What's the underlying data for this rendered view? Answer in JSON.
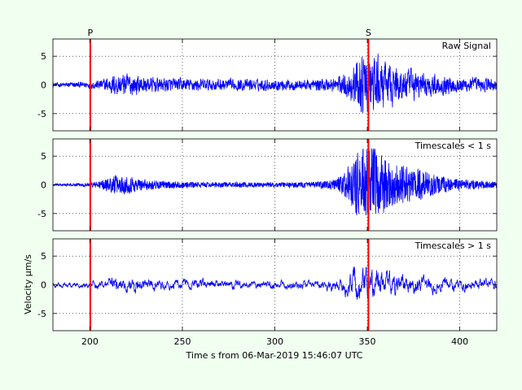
{
  "figure": {
    "background": "#f0fff0",
    "x_axis_label": "Time s from 06-Mar-2019 15:46:07 UTC",
    "y_axis_label": "Velocity μm/s",
    "trace_color": "#0000ff",
    "pick_color": "#ff0000"
  },
  "chart_data": {
    "type": "line",
    "shared_x": {
      "range": [
        180,
        420
      ],
      "ticks": [
        200,
        250,
        300,
        350,
        400
      ]
    },
    "picks": [
      {
        "label": "P",
        "x": 200.2
      },
      {
        "label": "S",
        "x": 350.6
      }
    ],
    "grid": true,
    "panels": [
      {
        "title": "Raw Signal",
        "ylim": [
          -8,
          8
        ],
        "yticks": [
          -5,
          0,
          5
        ],
        "envelope": [
          [
            180,
            0.5
          ],
          [
            188,
            0.6
          ],
          [
            196,
            0.7
          ],
          [
            200,
            0.8
          ],
          [
            206,
            1.2
          ],
          [
            214,
            2.5
          ],
          [
            222,
            2.6
          ],
          [
            230,
            1.8
          ],
          [
            240,
            1.6
          ],
          [
            260,
            1.4
          ],
          [
            280,
            1.3
          ],
          [
            300,
            1.3
          ],
          [
            320,
            1.2
          ],
          [
            333,
            1.8
          ],
          [
            338,
            2.6
          ],
          [
            342,
            4.0
          ],
          [
            346,
            6.5
          ],
          [
            350,
            7.2
          ],
          [
            354,
            6.5
          ],
          [
            360,
            5.0
          ],
          [
            368,
            4.0
          ],
          [
            378,
            3.0
          ],
          [
            390,
            2.2
          ],
          [
            400,
            1.8
          ],
          [
            412,
            1.6
          ],
          [
            420,
            1.5
          ]
        ]
      },
      {
        "title": "Timescales < 1 s",
        "ylim": [
          -8,
          8
        ],
        "yticks": [
          -5,
          0,
          5
        ],
        "envelope": [
          [
            180,
            0.2
          ],
          [
            188,
            0.25
          ],
          [
            196,
            0.3
          ],
          [
            200,
            0.4
          ],
          [
            206,
            0.8
          ],
          [
            214,
            1.8
          ],
          [
            222,
            1.6
          ],
          [
            230,
            1.0
          ],
          [
            240,
            0.7
          ],
          [
            260,
            0.5
          ],
          [
            280,
            0.5
          ],
          [
            300,
            0.5
          ],
          [
            320,
            0.5
          ],
          [
            333,
            1.0
          ],
          [
            338,
            2.5
          ],
          [
            342,
            4.5
          ],
          [
            346,
            6.5
          ],
          [
            350,
            7.0
          ],
          [
            354,
            6.5
          ],
          [
            360,
            5.0
          ],
          [
            368,
            4.0
          ],
          [
            378,
            3.0
          ],
          [
            390,
            1.6
          ],
          [
            400,
            1.1
          ],
          [
            412,
            0.8
          ],
          [
            420,
            0.6
          ]
        ]
      },
      {
        "title": "Timescales > 1 s",
        "ylim": [
          -8,
          8
        ],
        "yticks": [
          -5,
          0,
          5
        ],
        "envelope": [
          [
            180,
            0.4
          ],
          [
            188,
            0.45
          ],
          [
            196,
            0.5
          ],
          [
            200,
            0.6
          ],
          [
            206,
            0.8
          ],
          [
            214,
            1.3
          ],
          [
            222,
            1.5
          ],
          [
            230,
            1.2
          ],
          [
            240,
            1.0
          ],
          [
            260,
            0.9
          ],
          [
            280,
            0.8
          ],
          [
            300,
            0.8
          ],
          [
            320,
            0.8
          ],
          [
            333,
            1.0
          ],
          [
            338,
            1.8
          ],
          [
            342,
            2.8
          ],
          [
            346,
            3.2
          ],
          [
            350,
            3.4
          ],
          [
            354,
            2.8
          ],
          [
            360,
            2.2
          ],
          [
            368,
            2.0
          ],
          [
            378,
            1.6
          ],
          [
            390,
            1.2
          ],
          [
            400,
            1.1
          ],
          [
            412,
            1.0
          ],
          [
            420,
            1.0
          ]
        ]
      }
    ]
  }
}
